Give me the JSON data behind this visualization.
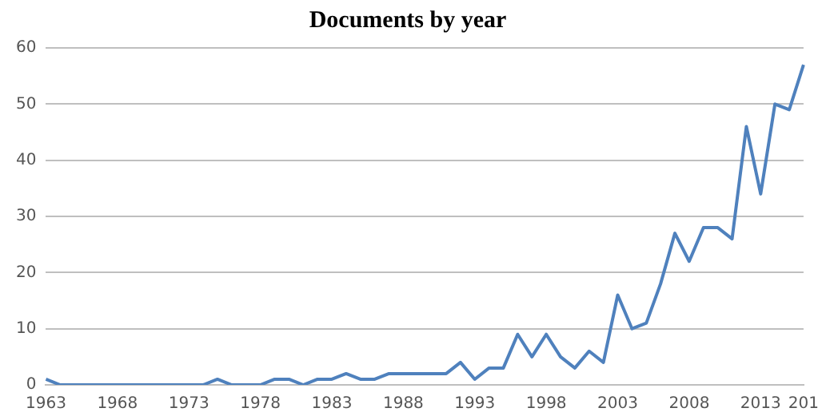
{
  "chart_data": {
    "type": "line",
    "title": "Documents by year",
    "categories": [
      "1963",
      null,
      null,
      null,
      null,
      "1968",
      null,
      null,
      null,
      null,
      "1973",
      null,
      null,
      null,
      null,
      "1978",
      null,
      null,
      null,
      null,
      "1983",
      null,
      null,
      null,
      null,
      "1988",
      null,
      null,
      null,
      null,
      "1993",
      null,
      null,
      null,
      null,
      "1998",
      null,
      null,
      null,
      null,
      "2003",
      null,
      null,
      null,
      null,
      "2008",
      null,
      null,
      null,
      null,
      "2013",
      null,
      null,
      "201"
    ],
    "series": [
      {
        "color": "#4f81bd",
        "values": [
          1,
          0,
          0,
          0,
          0,
          0,
          0,
          0,
          0,
          0,
          0,
          0,
          1,
          0,
          0,
          0,
          1,
          1,
          0,
          1,
          1,
          2,
          1,
          1,
          2,
          2,
          2,
          2,
          2,
          4,
          1,
          3,
          3,
          9,
          5,
          9,
          5,
          3,
          6,
          4,
          16,
          10,
          11,
          18,
          27,
          22,
          28,
          28,
          26,
          46,
          34,
          50,
          49,
          57
        ]
      }
    ],
    "ylim": [
      0,
      60
    ],
    "yticks": [
      0,
      10,
      20,
      30,
      40,
      50,
      60
    ],
    "grid": "y",
    "legend": false,
    "marker": "none",
    "line_style": "solid"
  }
}
